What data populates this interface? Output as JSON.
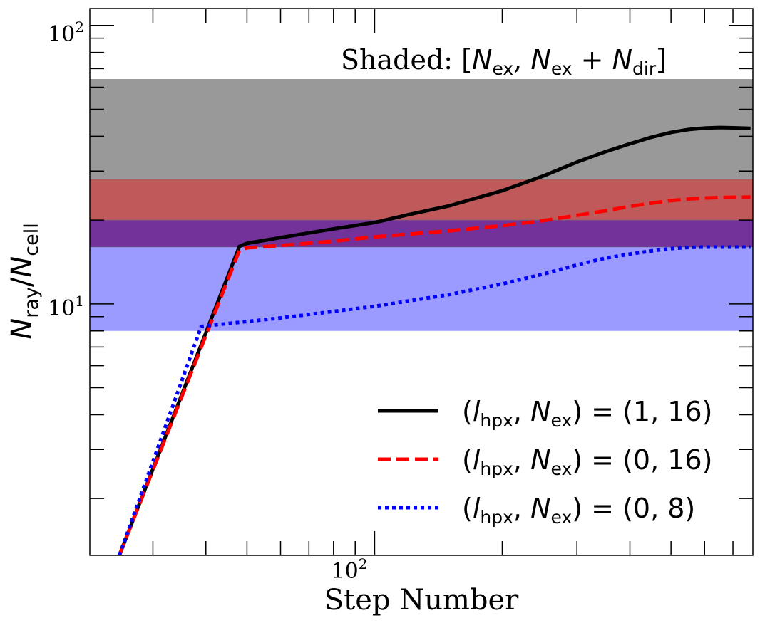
{
  "chart_data": {
    "type": "line",
    "xlabel": "Step Number",
    "ylabel": "N_ray/N_cell",
    "xscale": "log",
    "yscale": "log",
    "xlim": [
      21.3,
      780
    ],
    "ylim": [
      1.25,
      115
    ],
    "x_tick_labels": [
      {
        "value": 100,
        "label": "10^2"
      }
    ],
    "y_tick_labels": [
      {
        "value": 10,
        "label": "10^1"
      },
      {
        "value": 100,
        "label": "10^2"
      }
    ],
    "annotation": "Shaded: [N_ex, N_ex + N_dir]",
    "bands": [
      {
        "low": 28,
        "high": 64,
        "color": "#999999"
      },
      {
        "low": 20,
        "high": 28,
        "color": "#c05a5a"
      },
      {
        "low": 16,
        "high": 20,
        "color": "#733299"
      },
      {
        "low": 8,
        "high": 16,
        "color": "#9a9aff"
      }
    ],
    "series": [
      {
        "name": "(l_hpx, N_ex) = (1, 16)",
        "color": "#000000",
        "style": "solid",
        "points": [
          [
            25,
            1.25
          ],
          [
            48,
            16.1
          ],
          [
            50,
            16.5
          ],
          [
            60,
            17.3
          ],
          [
            80,
            18.6
          ],
          [
            100,
            19.6
          ],
          [
            120,
            20.9
          ],
          [
            150,
            22.5
          ],
          [
            200,
            25.5
          ],
          [
            250,
            28.8
          ],
          [
            300,
            32.3
          ],
          [
            350,
            35.2
          ],
          [
            400,
            37.6
          ],
          [
            450,
            39.7
          ],
          [
            500,
            41.3
          ],
          [
            550,
            42.3
          ],
          [
            600,
            42.8
          ],
          [
            650,
            43.0
          ],
          [
            700,
            42.9
          ],
          [
            770,
            42.7
          ]
        ]
      },
      {
        "name": "(l_hpx, N_ex) = (0, 16)",
        "color": "#ff0000",
        "style": "dashed",
        "points": [
          [
            25,
            1.25
          ],
          [
            48,
            15.6
          ],
          [
            50,
            15.9
          ],
          [
            60,
            16.2
          ],
          [
            80,
            16.8
          ],
          [
            100,
            17.4
          ],
          [
            150,
            18.3
          ],
          [
            200,
            19.1
          ],
          [
            250,
            19.9
          ],
          [
            300,
            20.8
          ],
          [
            350,
            21.6
          ],
          [
            400,
            22.4
          ],
          [
            450,
            23.0
          ],
          [
            500,
            23.5
          ],
          [
            550,
            23.8
          ],
          [
            600,
            24.0
          ],
          [
            650,
            24.1
          ],
          [
            770,
            24.2
          ]
        ]
      },
      {
        "name": "(l_hpx, N_ex) = (0, 8)",
        "color": "#0000ff",
        "style": "dotted",
        "points": [
          [
            25,
            1.25
          ],
          [
            39,
            8.3
          ],
          [
            45,
            8.5
          ],
          [
            60,
            8.9
          ],
          [
            80,
            9.4
          ],
          [
            100,
            9.8
          ],
          [
            150,
            10.8
          ],
          [
            200,
            11.8
          ],
          [
            250,
            12.8
          ],
          [
            300,
            13.8
          ],
          [
            350,
            14.6
          ],
          [
            400,
            15.1
          ],
          [
            450,
            15.5
          ],
          [
            500,
            15.8
          ],
          [
            550,
            15.95
          ],
          [
            600,
            16.0
          ],
          [
            770,
            16.0
          ]
        ]
      }
    ],
    "legend": {
      "placement": "lower-right"
    }
  }
}
